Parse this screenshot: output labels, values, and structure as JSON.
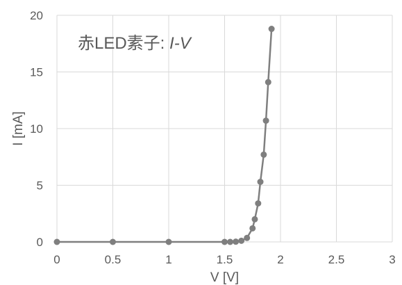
{
  "chart_data": {
    "type": "scatter",
    "title": "赤LED素子: ",
    "title_italic": "I-V",
    "xlabel": "V [V]",
    "ylabel": "I [mA]",
    "xlim": [
      0,
      3
    ],
    "ylim": [
      0,
      20
    ],
    "x_ticks": [
      0,
      0.5,
      1,
      1.5,
      2,
      2.5,
      3
    ],
    "x_tick_labels": [
      "0",
      "0.5",
      "1",
      "1.5",
      "2",
      "2.5",
      "3"
    ],
    "y_ticks": [
      0,
      5,
      10,
      15,
      20
    ],
    "y_tick_labels": [
      "0",
      "5",
      "10",
      "15",
      "20"
    ],
    "grid": true,
    "series": [
      {
        "color": "#7f7f7f",
        "points": [
          [
            0,
            0
          ],
          [
            0.5,
            0
          ],
          [
            1.0,
            0
          ],
          [
            1.5,
            0
          ],
          [
            1.55,
            0
          ],
          [
            1.6,
            0.02
          ],
          [
            1.65,
            0.1
          ],
          [
            1.7,
            0.35
          ],
          [
            1.75,
            1.2
          ],
          [
            1.77,
            2.0
          ],
          [
            1.8,
            3.4
          ],
          [
            1.82,
            5.3
          ],
          [
            1.85,
            7.7
          ],
          [
            1.87,
            10.7
          ],
          [
            1.89,
            14.1
          ],
          [
            1.92,
            18.8
          ]
        ]
      }
    ]
  }
}
